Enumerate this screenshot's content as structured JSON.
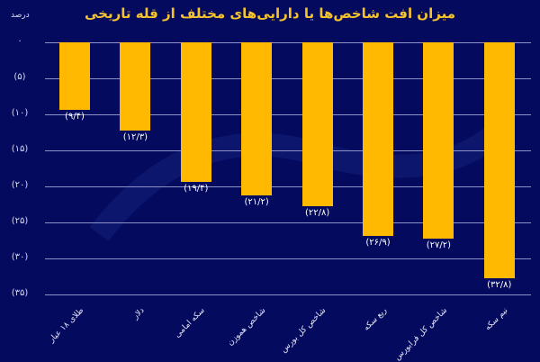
{
  "chart_data": {
    "type": "bar",
    "title": "میزان افت شاخص‌ها یا دارایی‌های مختلف از قله تاریخی",
    "ylabel": "درصد",
    "xlabel": "",
    "ylim": [
      -35,
      0
    ],
    "y_ticks": [
      "۰",
      "(۵)",
      "(۱۰)",
      "(۱۵)",
      "(۲۰)",
      "(۲۵)",
      "(۳۰)",
      "(۳۵)"
    ],
    "grid": true,
    "legend": "none",
    "categories": [
      "طلای ۱۸ عیار",
      "دلار",
      "سکه امامی",
      "شاخص هموزن",
      "شاخص کل بورس",
      "ربع سکه",
      "شاخص کل فرابورس",
      "نیم سکه"
    ],
    "values": [
      -9.4,
      -12.3,
      -19.4,
      -21.2,
      -22.8,
      -26.9,
      -27.2,
      -32.8
    ],
    "value_labels": [
      "(۹/۴)",
      "(۱۲/۳)",
      "(۱۹/۴)",
      "(۲۱/۲)",
      "(۲۲/۸)",
      "(۲۶/۹)",
      "(۲۷/۲)",
      "(۳۲/۸)"
    ],
    "colors": {
      "bar": "#ffb900",
      "background": "#040a5e",
      "title": "#f5c32c",
      "grid": "#8c92c8"
    }
  }
}
